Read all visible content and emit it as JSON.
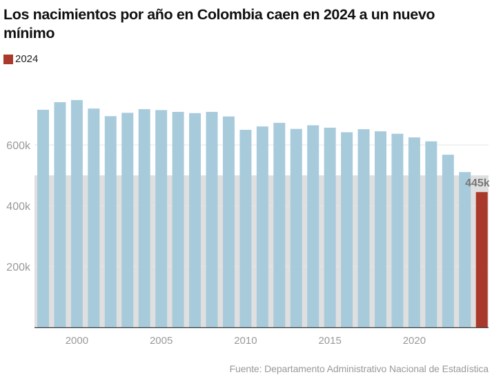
{
  "title": "Los nacimientos por año en Colombia caen en 2024 a un nuevo mínimo",
  "legend": [
    {
      "label": "2024",
      "color": "#a93a2b"
    }
  ],
  "source": "Fuente: Departamento Administrativo Nacional de Estadística",
  "colors": {
    "bar": "#a8cbdc",
    "highlight": "#a93a2b",
    "band": "#e0dfe0",
    "grid": "#e6e6e6",
    "axis": "#333333",
    "tick_text": "#999999",
    "annotation_text": "#777777"
  },
  "chart_data": {
    "type": "bar",
    "title": "Los nacimientos por año en Colombia caen en 2024 a un nuevo mínimo",
    "xlabel": "",
    "ylabel": "",
    "x": [
      1998,
      1999,
      2000,
      2001,
      2002,
      2003,
      2004,
      2005,
      2006,
      2007,
      2008,
      2009,
      2010,
      2011,
      2012,
      2013,
      2014,
      2015,
      2016,
      2017,
      2018,
      2019,
      2020,
      2021,
      2022,
      2023,
      2024
    ],
    "values": [
      716000,
      741000,
      748000,
      720000,
      695000,
      706000,
      718000,
      715000,
      709000,
      705000,
      709000,
      694000,
      650000,
      661000,
      673000,
      653000,
      665000,
      657000,
      642000,
      652000,
      645000,
      637000,
      625000,
      612000,
      568000,
      511000,
      445000
    ],
    "highlight": 2024,
    "ylim": [
      0,
      800000
    ],
    "yticks": [
      200000,
      400000,
      600000
    ],
    "ytick_labels": [
      "200k",
      "400k",
      "600k"
    ],
    "xticks": [
      2000,
      2005,
      2010,
      2015,
      2020
    ],
    "xtick_labels": [
      "2000",
      "2005",
      "2010",
      "2015",
      "2020"
    ],
    "band": {
      "from": 0,
      "to": 500000
    },
    "annotations": [
      {
        "x": 2024,
        "text": "445k"
      }
    ],
    "grid": true,
    "legend_position": "top-left"
  }
}
